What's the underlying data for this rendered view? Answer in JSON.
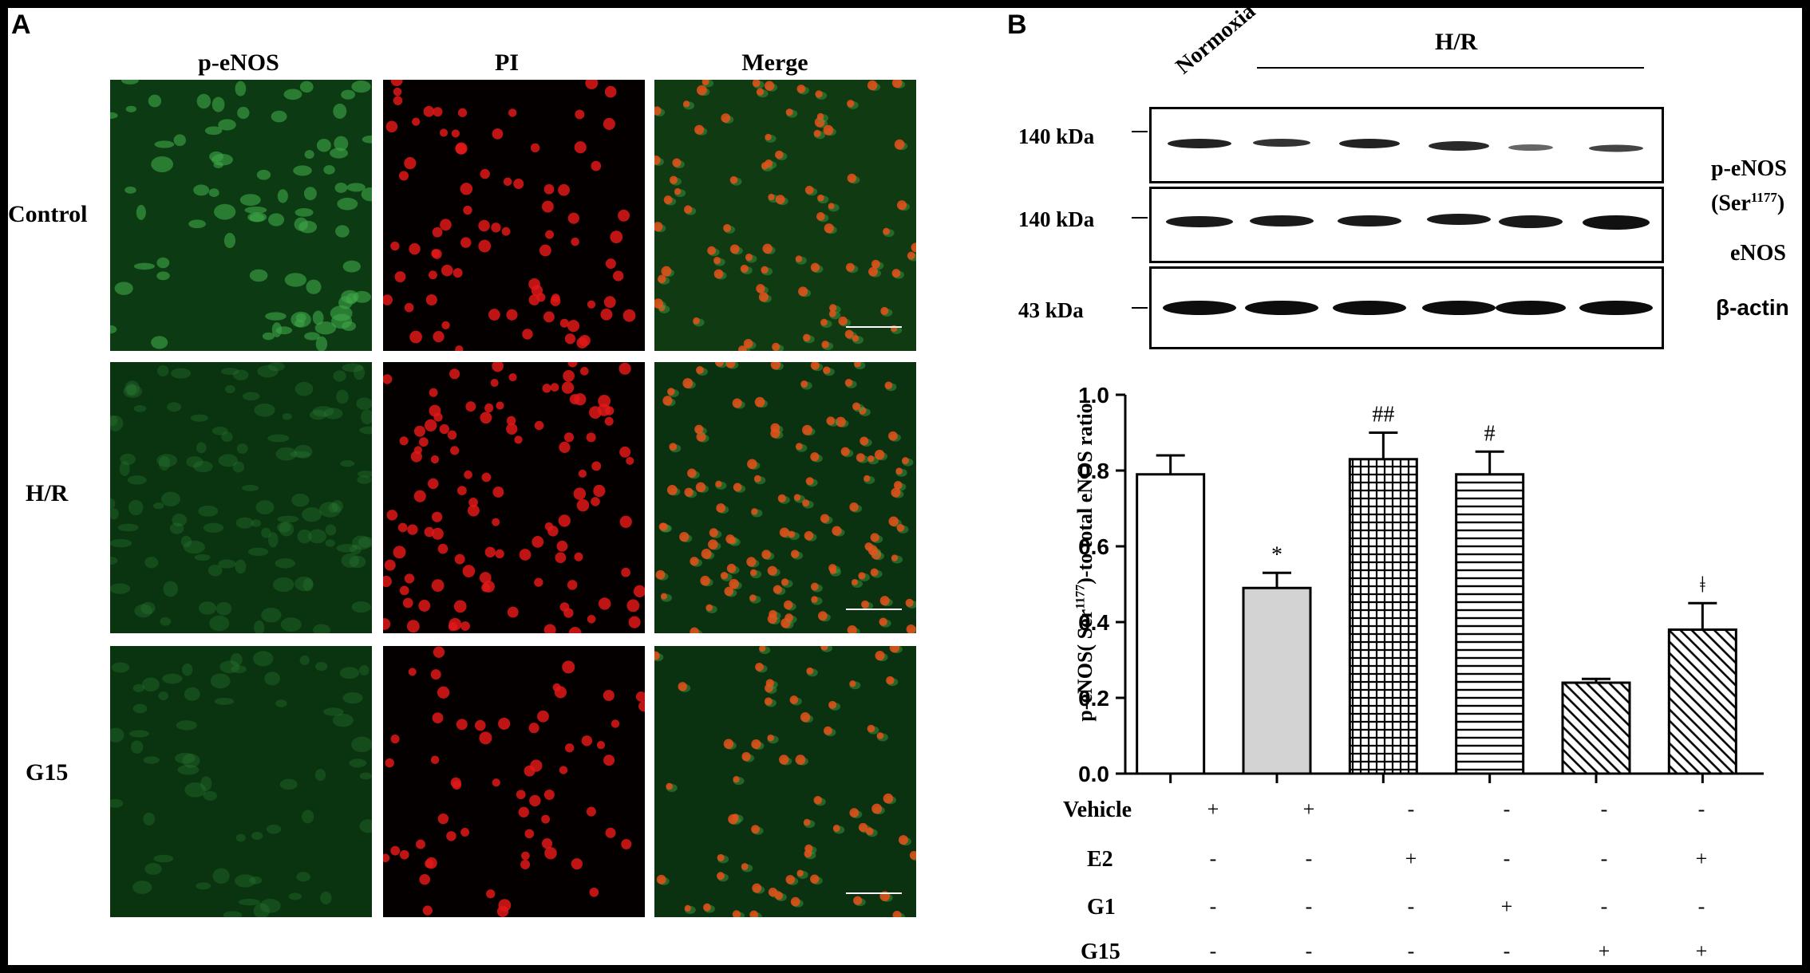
{
  "panel_a": {
    "letter": "A",
    "columns": [
      "p-eNOS",
      "PI",
      "Merge"
    ],
    "rows": [
      "Control",
      "H/R",
      "G15"
    ]
  },
  "panel_b": {
    "letter": "B",
    "lanes": {
      "first": "Normoxia",
      "group": "H/R"
    },
    "blots": [
      {
        "mw": "140 kDa",
        "protein": "p-eNOS",
        "protein_sub": "(Ser",
        "protein_sup": "1177",
        "protein_end": ")"
      },
      {
        "mw": "140 kDa",
        "protein": "eNOS"
      },
      {
        "mw": "43 kDa",
        "protein": "β-actin"
      }
    ],
    "treatments": {
      "rows": [
        {
          "label": "Vehicle",
          "values": [
            "+",
            "+",
            "-",
            "-",
            "-",
            "-"
          ]
        },
        {
          "label": "E2",
          "values": [
            "-",
            "-",
            "+",
            "-",
            "-",
            "+"
          ]
        },
        {
          "label": "G1",
          "values": [
            "-",
            "-",
            "-",
            "+",
            "-",
            "-"
          ]
        },
        {
          "label": "G15",
          "values": [
            "-",
            "-",
            "-",
            "-",
            "+",
            "+"
          ]
        }
      ]
    }
  },
  "chart_data": {
    "type": "bar",
    "ylabel_pre": "p-eNOS( Ser",
    "ylabel_sup": "1177",
    "ylabel_post": ")-to total eNOS ratio",
    "ylim": [
      0,
      1.0
    ],
    "yticks": [
      "0.0",
      "0.2",
      "0.4",
      "0.6",
      "0.8",
      "1.0"
    ],
    "values": [
      0.79,
      0.49,
      0.83,
      0.79,
      0.24,
      0.38
    ],
    "errors": [
      0.05,
      0.04,
      0.07,
      0.06,
      0.01,
      0.07
    ],
    "significance": [
      "",
      "*",
      "##",
      "#",
      "",
      "ǂ"
    ],
    "patterns": [
      "white",
      "gray",
      "crosshatch",
      "horizontal",
      "diagonal",
      "diagonal"
    ],
    "colors": {
      "gray": "#d3d3d3",
      "stroke": "#000000"
    }
  }
}
